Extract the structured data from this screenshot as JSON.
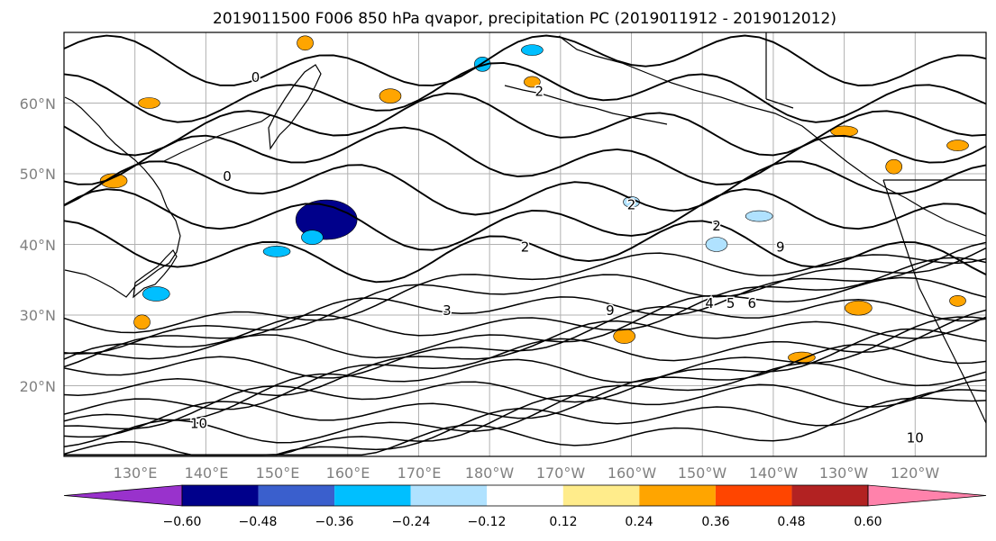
{
  "figure": {
    "title": "2019011500 F006 850 hPa qvapor, precipitation PC (2019011912 - 2019012012)"
  },
  "map": {
    "lat_range": [
      10,
      70
    ],
    "lon_range": [
      120,
      250
    ],
    "grid": true,
    "lat_ticks": [
      {
        "lat": 60,
        "label": "60°N"
      },
      {
        "lat": 50,
        "label": "50°N"
      },
      {
        "lat": 40,
        "label": "40°N"
      },
      {
        "lat": 30,
        "label": "30°N"
      },
      {
        "lat": 20,
        "label": "20°N"
      }
    ],
    "lon_ticks": [
      {
        "lon": 130,
        "label": "130°E"
      },
      {
        "lon": 140,
        "label": "140°E"
      },
      {
        "lon": 150,
        "label": "150°E"
      },
      {
        "lon": 160,
        "label": "160°E"
      },
      {
        "lon": 170,
        "label": "170°E"
      },
      {
        "lon": 180,
        "label": "180°W"
      },
      {
        "lon": 190,
        "label": "170°W"
      },
      {
        "lon": 200,
        "label": "160°W"
      },
      {
        "lon": 210,
        "label": "150°W"
      },
      {
        "lon": 220,
        "label": "140°W"
      },
      {
        "lon": 230,
        "label": "130°W"
      },
      {
        "lon": 240,
        "label": "120°W"
      }
    ],
    "contour_labels": [
      {
        "text": "0",
        "lon": 147,
        "lat": 63
      },
      {
        "text": "0",
        "lon": 143,
        "lat": 49
      },
      {
        "text": "2",
        "lon": 187,
        "lat": 61
      },
      {
        "text": "2",
        "lon": 200,
        "lat": 45
      },
      {
        "text": "2",
        "lon": 212,
        "lat": 42
      },
      {
        "text": "2",
        "lon": 185,
        "lat": 39
      },
      {
        "text": "3",
        "lon": 174,
        "lat": 30
      },
      {
        "text": "4",
        "lon": 211,
        "lat": 31
      },
      {
        "text": "5",
        "lon": 214,
        "lat": 31
      },
      {
        "text": "6",
        "lon": 217,
        "lat": 31
      },
      {
        "text": "9",
        "lon": 197,
        "lat": 30
      },
      {
        "text": "9",
        "lon": 221,
        "lat": 39
      },
      {
        "text": "10",
        "lon": 139,
        "lat": 14
      },
      {
        "text": "10",
        "lon": 240,
        "lat": 12
      }
    ]
  },
  "colorbar": {
    "colors": [
      "#9932cc",
      "#00008b",
      "#3a5fcd",
      "#00bfff",
      "#b0e2ff",
      "#ffffff",
      "#ffec8b",
      "#ffa500",
      "#ff4500",
      "#b22222",
      "#ff82ab"
    ],
    "tick_labels": [
      "−0.60",
      "−0.48",
      "−0.36",
      "−0.24",
      "−0.12",
      "0.12",
      "0.24",
      "0.36",
      "0.48",
      "0.60"
    ]
  },
  "chart_data": {
    "type": "heatmap",
    "title": "2019011500 F006 850 hPa qvapor, precipitation PC (2019011912 - 2019012012)",
    "variable_filled": "precipitation PC",
    "variable_contoured": "850 hPa qvapor",
    "levels": [
      -0.6,
      -0.48,
      -0.36,
      -0.24,
      -0.12,
      0.12,
      0.24,
      0.36,
      0.48,
      0.6
    ],
    "extend": "both",
    "xlim": [
      120,
      250
    ],
    "ylim": [
      10,
      70
    ],
    "features": [
      {
        "kind": "negative",
        "lon": 157,
        "lat": 43.5,
        "value": -0.5
      },
      {
        "kind": "negative",
        "lon": 155,
        "lat": 41,
        "value": -0.3
      },
      {
        "kind": "negative",
        "lon": 150,
        "lat": 39,
        "value": -0.25
      },
      {
        "kind": "negative",
        "lon": 179,
        "lat": 65.5,
        "value": -0.25
      },
      {
        "kind": "negative",
        "lon": 186,
        "lat": 67.5,
        "value": -0.25
      },
      {
        "kind": "negative",
        "lon": 133,
        "lat": 33,
        "value": -0.3
      },
      {
        "kind": "negative",
        "lon": 200,
        "lat": 46,
        "value": -0.2
      },
      {
        "kind": "negative",
        "lon": 212,
        "lat": 40,
        "value": -0.2
      },
      {
        "kind": "negative",
        "lon": 218,
        "lat": 44,
        "value": -0.2
      },
      {
        "kind": "positive",
        "lon": 154,
        "lat": 68.5,
        "value": 0.3
      },
      {
        "kind": "positive",
        "lon": 132,
        "lat": 60,
        "value": 0.3
      },
      {
        "kind": "positive",
        "lon": 127,
        "lat": 49,
        "value": 0.28
      },
      {
        "kind": "positive",
        "lon": 186,
        "lat": 63,
        "value": 0.3
      },
      {
        "kind": "positive",
        "lon": 166,
        "lat": 61,
        "value": 0.3
      },
      {
        "kind": "positive",
        "lon": 230,
        "lat": 56,
        "value": 0.3
      },
      {
        "kind": "positive",
        "lon": 237,
        "lat": 51,
        "value": 0.3
      },
      {
        "kind": "positive",
        "lon": 246,
        "lat": 54,
        "value": 0.3
      },
      {
        "kind": "positive",
        "lon": 232,
        "lat": 31,
        "value": 0.3
      },
      {
        "kind": "positive",
        "lon": 246,
        "lat": 32,
        "value": 0.35
      },
      {
        "kind": "positive",
        "lon": 199,
        "lat": 27,
        "value": 0.3
      },
      {
        "kind": "positive",
        "lon": 224,
        "lat": 24,
        "value": 0.3
      },
      {
        "kind": "positive",
        "lon": 131,
        "lat": 29,
        "value": 0.3
      }
    ]
  }
}
